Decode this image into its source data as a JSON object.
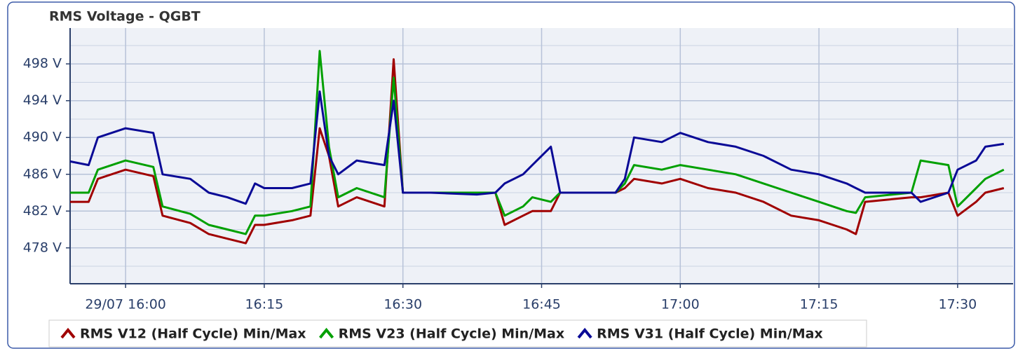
{
  "chart_data": {
    "type": "line",
    "title": "RMS Voltage - QGBT",
    "x": [
      "15:54",
      "15:56",
      "15:57",
      "16:00",
      "16:03",
      "16:04",
      "16:07",
      "16:09",
      "16:11",
      "16:13",
      "16:14",
      "16:15",
      "16:18",
      "16:20",
      "16:21",
      "16:22",
      "16:23",
      "16:25",
      "16:28",
      "16:29",
      "16:30",
      "16:33",
      "16:38",
      "16:40",
      "16:41",
      "16:43",
      "16:44",
      "16:46",
      "16:47",
      "16:53",
      "16:54",
      "16:55",
      "16:58",
      "17:00",
      "17:03",
      "17:06",
      "17:09",
      "17:12",
      "17:15",
      "17:18",
      "17:19",
      "17:20",
      "17:25",
      "17:26",
      "17:29",
      "17:30",
      "17:32",
      "17:33",
      "17:35"
    ],
    "series": [
      {
        "name": "RMS V12 (Half Cycle) Min/Max",
        "color": "#a00000",
        "values": [
          483,
          483,
          485.5,
          486.5,
          485.8,
          481.5,
          480.7,
          479.5,
          479,
          478.5,
          480.5,
          480.5,
          481,
          481.5,
          491,
          488,
          482.5,
          483.5,
          482.5,
          498.5,
          484,
          484,
          484,
          484,
          480.5,
          481.5,
          482,
          482,
          484,
          484,
          484.5,
          485.5,
          485,
          485.5,
          484.5,
          484,
          483,
          481.5,
          481,
          480,
          479.5,
          483,
          483.5,
          483.5,
          484,
          481.5,
          483,
          484,
          484.5
        ]
      },
      {
        "name": "RMS V23 (Half Cycle) Min/Max",
        "color": "#00a000",
        "values": [
          484,
          484,
          486.5,
          487.5,
          486.8,
          482.5,
          481.7,
          480.5,
          480,
          479.5,
          481.5,
          481.5,
          482,
          482.5,
          499.4,
          489,
          483.5,
          484.5,
          483.5,
          496.5,
          484,
          484,
          484,
          484,
          481.5,
          482.5,
          483.5,
          483,
          484,
          484,
          485,
          487,
          486.5,
          487,
          486.5,
          486,
          485,
          484,
          483,
          482,
          481.8,
          483.5,
          484,
          487.5,
          487,
          482.5,
          484.5,
          485.5,
          486.5
        ]
      },
      {
        "name": "RMS V31 (Half Cycle) Min/Max",
        "color": "#0a0a96",
        "values": [
          487.4,
          487,
          490,
          491,
          490.5,
          486,
          485.5,
          484,
          483.5,
          482.8,
          485,
          484.5,
          484.5,
          485,
          495,
          488,
          486,
          487.5,
          487,
          494,
          484,
          484,
          483.8,
          484,
          485,
          486,
          487,
          489,
          484,
          484,
          485.5,
          490,
          489.5,
          490.5,
          489.5,
          489,
          488,
          486.5,
          486,
          485,
          484.5,
          484,
          484,
          483,
          484,
          486.5,
          487.5,
          489,
          489.3
        ]
      }
    ],
    "xlim": [
      "15:54",
      "17:36"
    ],
    "xticks": [
      {
        "value": "16:00",
        "label": "29/07 16:00"
      },
      "16:15",
      "16:30",
      "16:45",
      "17:00",
      "17:15",
      "17:30"
    ],
    "ylim": [
      474.1,
      501.9
    ],
    "yticks": [
      {
        "value": 478,
        "label": "478 V"
      },
      {
        "value": 482,
        "label": "482 V"
      },
      {
        "value": 486,
        "label": "486 V"
      },
      {
        "value": 490,
        "label": "490 V"
      },
      {
        "value": 494,
        "label": "494 V"
      },
      {
        "value": 498,
        "label": "498 V"
      }
    ],
    "yminorticks": [
      476,
      480,
      484,
      488,
      492,
      496,
      500
    ],
    "grid": true
  }
}
